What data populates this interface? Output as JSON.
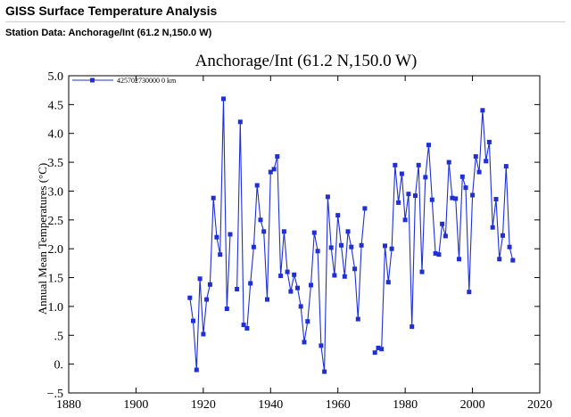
{
  "header": {
    "title": "GISS Surface Temperature Analysis"
  },
  "station": {
    "label": "Station Data: Anchorage/Int (61.2 N,150.0 W)"
  },
  "chart_data": {
    "type": "line",
    "title": "Anchorage/Int (61.2 N,150.0 W)",
    "xlabel": "",
    "ylabel": "Annual Mean Temperatures (°C)",
    "xlim": [
      1880,
      2020
    ],
    "ylim": [
      -0.5,
      5.0
    ],
    "x_ticks": [
      1880,
      1900,
      1920,
      1940,
      1960,
      1980,
      2000,
      2020
    ],
    "y_ticks": [
      -0.5,
      0.0,
      0.5,
      1.0,
      1.5,
      2.0,
      2.5,
      3.0,
      3.5,
      4.0,
      4.5,
      5.0
    ],
    "y_tick_labels": [
      "−.5",
      "0.",
      ".5",
      "1.0",
      "1.5",
      "2.0",
      "2.5",
      "3.0",
      "3.5",
      "4.0",
      "4.5",
      "5.0"
    ],
    "series_color": "#1f2fd6",
    "legend": {
      "label": "425702730000  0 km",
      "position": "top-left"
    },
    "series": [
      {
        "name": "425702730000  0 km",
        "segments": [
          [
            [
              1916,
              1.15
            ],
            [
              1917,
              0.75
            ],
            [
              1918,
              -0.1
            ],
            [
              1919,
              1.48
            ],
            [
              1920,
              0.52
            ],
            [
              1921,
              1.12
            ],
            [
              1922,
              1.38
            ],
            [
              1923,
              2.88
            ],
            [
              1924,
              2.2
            ],
            [
              1925,
              1.9
            ],
            [
              1926,
              4.6
            ],
            [
              1927,
              0.96
            ],
            [
              1928,
              2.25
            ]
          ],
          [
            [
              1930,
              1.3
            ],
            [
              1931,
              4.2
            ],
            [
              1932,
              0.68
            ],
            [
              1933,
              0.62
            ],
            [
              1934,
              1.4
            ],
            [
              1935,
              2.03
            ],
            [
              1936,
              3.1
            ],
            [
              1937,
              2.5
            ],
            [
              1938,
              2.3
            ],
            [
              1939,
              1.12
            ],
            [
              1940,
              3.33
            ],
            [
              1941,
              3.38
            ],
            [
              1942,
              3.6
            ],
            [
              1943,
              1.53
            ],
            [
              1944,
              2.3
            ],
            [
              1945,
              1.6
            ],
            [
              1946,
              1.26
            ],
            [
              1947,
              1.55
            ],
            [
              1948,
              1.32
            ],
            [
              1949,
              1.0
            ],
            [
              1950,
              0.38
            ],
            [
              1951,
              0.74
            ],
            [
              1952,
              1.37
            ],
            [
              1953,
              2.28
            ],
            [
              1954,
              1.96
            ],
            [
              1955,
              0.32
            ],
            [
              1956,
              -0.13
            ],
            [
              1957,
              2.9
            ],
            [
              1958,
              2.02
            ],
            [
              1959,
              1.54
            ],
            [
              1960,
              2.58
            ],
            [
              1961,
              2.06
            ],
            [
              1962,
              1.52
            ],
            [
              1963,
              2.3
            ],
            [
              1964,
              2.03
            ],
            [
              1965,
              1.65
            ],
            [
              1966,
              0.78
            ],
            [
              1967,
              2.06
            ],
            [
              1968,
              2.7
            ]
          ],
          [
            [
              1971,
              0.2
            ],
            [
              1972,
              0.28
            ],
            [
              1973,
              0.26
            ],
            [
              1974,
              2.05
            ],
            [
              1975,
              1.42
            ],
            [
              1976,
              2.0
            ],
            [
              1977,
              3.45
            ],
            [
              1978,
              2.8
            ],
            [
              1979,
              3.3
            ],
            [
              1980,
              2.5
            ],
            [
              1981,
              2.95
            ],
            [
              1982,
              0.65
            ],
            [
              1983,
              2.92
            ],
            [
              1984,
              3.45
            ],
            [
              1985,
              1.6
            ],
            [
              1986,
              3.24
            ],
            [
              1987,
              3.8
            ],
            [
              1988,
              2.85
            ],
            [
              1989,
              1.92
            ],
            [
              1990,
              1.9
            ],
            [
              1991,
              2.43
            ],
            [
              1992,
              2.22
            ],
            [
              1993,
              3.5
            ],
            [
              1994,
              2.88
            ],
            [
              1995,
              2.87
            ],
            [
              1996,
              1.82
            ],
            [
              1997,
              3.25
            ],
            [
              1998,
              3.06
            ],
            [
              1999,
              1.25
            ],
            [
              2000,
              2.93
            ],
            [
              2001,
              3.6
            ],
            [
              2002,
              3.33
            ],
            [
              2003,
              4.4
            ],
            [
              2004,
              3.52
            ],
            [
              2005,
              3.85
            ],
            [
              2006,
              2.37
            ],
            [
              2007,
              2.86
            ],
            [
              2008,
              1.82
            ],
            [
              2009,
              2.23
            ],
            [
              2010,
              3.43
            ],
            [
              2011,
              2.03
            ],
            [
              2012,
              1.8
            ]
          ]
        ]
      }
    ]
  }
}
